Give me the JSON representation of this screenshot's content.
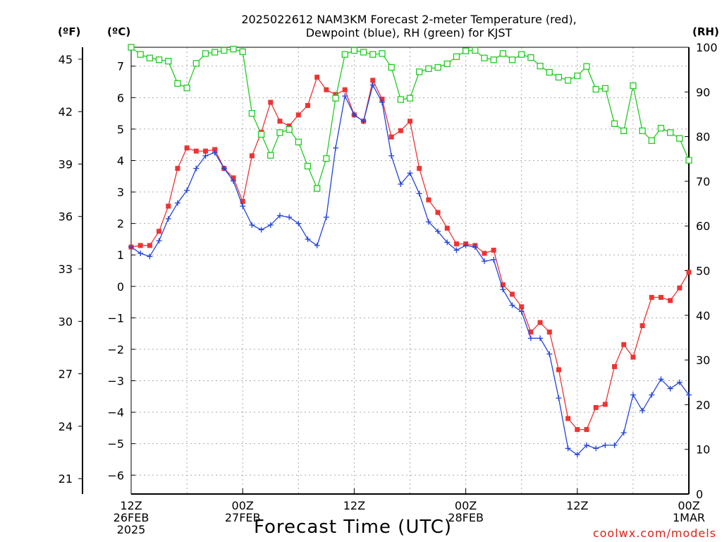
{
  "title_line1": "2025022612 NAM3KM Forecast 2-meter Temperature (red),",
  "title_line2": "Dewpoint (blue), RH (green) for KJST",
  "left_unit_f": "(ºF)",
  "left_unit_c": "(ºC)",
  "right_unit": "(RH)",
  "xlabel": "Forecast Time (UTC)",
  "credit": "coolwx.com/models",
  "colors": {
    "temperature": "#ee3333",
    "dewpoint": "#2244dd",
    "rh": "#22cc22",
    "grid": "#aaaaaa"
  },
  "chart_data": {
    "type": "line",
    "x_hours": [
      0,
      1,
      2,
      3,
      4,
      5,
      6,
      7,
      8,
      9,
      10,
      11,
      12,
      13,
      14,
      15,
      16,
      17,
      18,
      19,
      20,
      21,
      22,
      23,
      24,
      25,
      26,
      27,
      28,
      29,
      30,
      31,
      32,
      33,
      34,
      35,
      36,
      37,
      38,
      39,
      40,
      41,
      42,
      43,
      44,
      45,
      46,
      47,
      48,
      49,
      50,
      51,
      52,
      53,
      54,
      55,
      56,
      57,
      58,
      59,
      60
    ],
    "x_ticks": [
      {
        "hour": 0,
        "lines": [
          "12Z",
          "26FEB",
          "2025"
        ]
      },
      {
        "hour": 12,
        "lines": [
          "00Z",
          "27FEB"
        ]
      },
      {
        "hour": 24,
        "lines": [
          "12Z"
        ]
      },
      {
        "hour": 36,
        "lines": [
          "00Z",
          "28FEB"
        ]
      },
      {
        "hour": 48,
        "lines": [
          "12Z"
        ]
      },
      {
        "hour": 60,
        "lines": [
          "00Z",
          "1MAR"
        ]
      }
    ],
    "celsius_ticks": [
      "7",
      "6",
      "5",
      "4",
      "3",
      "2",
      "1",
      "0",
      "−1",
      "−2",
      "−3",
      "−4",
      "−5",
      "−6"
    ],
    "celsius_tick_values": [
      7,
      6,
      5,
      4,
      3,
      2,
      1,
      0,
      -1,
      -2,
      -3,
      -4,
      -5,
      -6
    ],
    "fahrenheit_ticks": [
      "45",
      "42",
      "39",
      "36",
      "33",
      "30",
      "27",
      "24",
      "21"
    ],
    "fahrenheit_tick_values": [
      45,
      42,
      39,
      36,
      33,
      30,
      27,
      24,
      21
    ],
    "rh_ticks": [
      "100",
      "90",
      "80",
      "70",
      "60",
      "50",
      "40",
      "30",
      "20",
      "10",
      "0"
    ],
    "rh_tick_values": [
      100,
      90,
      80,
      70,
      60,
      50,
      40,
      30,
      20,
      10,
      0
    ],
    "ylim_celsius": [
      -6.6,
      7.6
    ],
    "ylim_rh": [
      0,
      100
    ],
    "xlim": [
      0,
      60
    ],
    "series": [
      {
        "name": "Temperature",
        "axis": "celsius",
        "values": [
          1.25,
          1.3,
          1.3,
          1.75,
          2.55,
          3.75,
          4.4,
          4.3,
          4.3,
          4.35,
          3.75,
          3.45,
          2.7,
          4.15,
          4.9,
          5.85,
          5.25,
          5.1,
          5.45,
          5.75,
          6.65,
          6.25,
          6.1,
          6.25,
          5.45,
          5.25,
          6.55,
          5.95,
          4.75,
          4.95,
          5.25,
          3.75,
          2.75,
          2.35,
          1.85,
          1.35,
          1.35,
          1.3,
          1.05,
          1.15,
          0.05,
          -0.25,
          -0.65,
          -1.45,
          -1.15,
          -1.45,
          -2.65,
          -4.2,
          -4.55,
          -4.55,
          -3.85,
          -3.75,
          -2.55,
          -1.85,
          -2.25,
          -1.25,
          -0.35,
          -0.35,
          -0.45,
          -0.05,
          0.45
        ]
      },
      {
        "name": "Dewpoint",
        "axis": "celsius",
        "values": [
          1.25,
          1.05,
          0.95,
          1.45,
          2.15,
          2.65,
          3.05,
          3.75,
          4.15,
          4.25,
          3.75,
          3.35,
          2.55,
          1.95,
          1.8,
          1.95,
          2.25,
          2.2,
          2.0,
          1.5,
          1.3,
          2.2,
          4.4,
          6.05,
          5.45,
          5.25,
          6.4,
          5.85,
          4.15,
          3.25,
          3.6,
          2.95,
          2.05,
          1.75,
          1.4,
          1.15,
          1.3,
          1.25,
          0.8,
          0.85,
          -0.1,
          -0.6,
          -0.8,
          -1.65,
          -1.65,
          -2.15,
          -3.55,
          -5.15,
          -5.35,
          -5.05,
          -5.15,
          -5.05,
          -5.05,
          -4.65,
          -3.45,
          -3.95,
          -3.45,
          -2.95,
          -3.25,
          -3.05,
          -3.45
        ]
      },
      {
        "name": "RH",
        "axis": "rh",
        "values": [
          100,
          98.4,
          97.6,
          97.2,
          96.9,
          91.9,
          90.9,
          96.4,
          98.6,
          98.9,
          99.3,
          99.6,
          99.0,
          85.2,
          80.5,
          75.8,
          80.9,
          81.6,
          78.8,
          73.4,
          68.4,
          75.1,
          88.6,
          98.4,
          99.3,
          98.9,
          98.4,
          98.6,
          95.5,
          88.3,
          88.6,
          94.5,
          95.2,
          95.5,
          96.3,
          97.9,
          99.2,
          99.3,
          97.6,
          97.2,
          98.6,
          97.2,
          98.4,
          97.7,
          95.8,
          94.4,
          93.3,
          92.6,
          93.6,
          95.7,
          90.6,
          90.8,
          82.9,
          81.3,
          91.4,
          81.3,
          79.1,
          81.9,
          80.9,
          79.6,
          74.7
        ]
      }
    ]
  }
}
